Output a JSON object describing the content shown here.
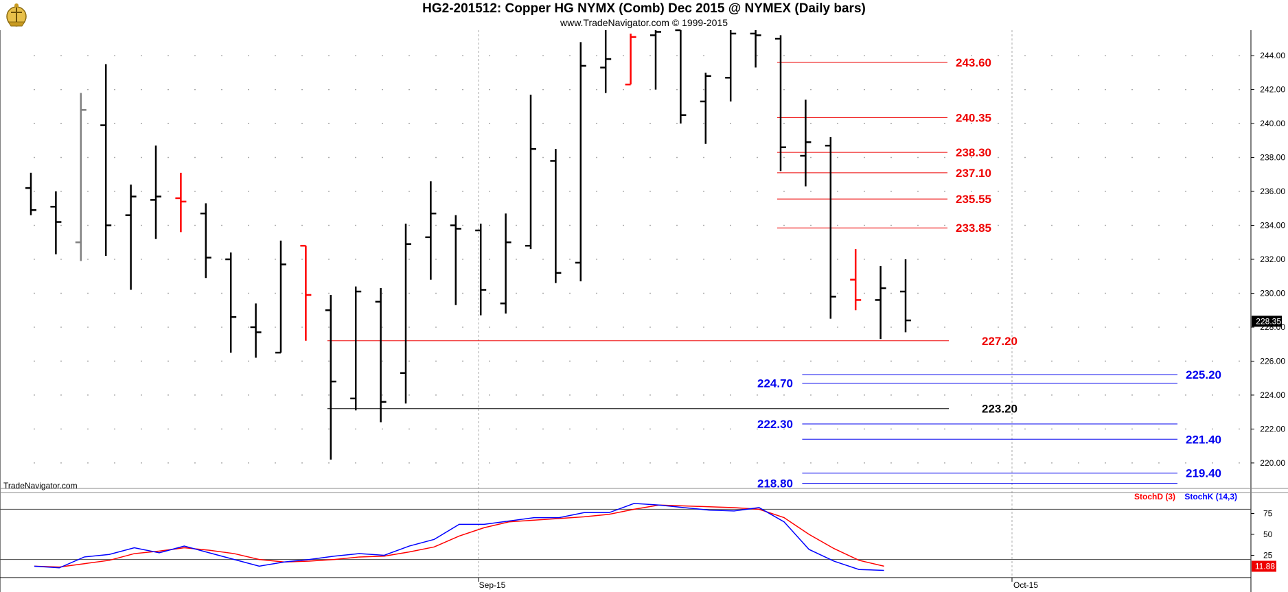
{
  "header": {
    "title": "HG2-201512:  Copper HG NYMX (Comb) Dec 2015 @ NYMEX  (Daily bars)",
    "subtitle": "www.TradeNavigator.com © 1999-2015"
  },
  "watermark": "TradeNavigator.com",
  "colors": {
    "up_bar": "#000000",
    "red_bar": "#ff0000",
    "green_bar": "#22cc22",
    "gray_bar": "#808080",
    "red_level": "#ee0000",
    "blue_level": "#0000ee",
    "black_level": "#000000",
    "stoch_d": "#ff0000",
    "stoch_k": "#0000ff"
  },
  "chart_data": [
    {
      "type": "ohlc",
      "y_axis": {
        "range": [
          218.5,
          245.5
        ],
        "ticks": [
          "220.00",
          "222.00",
          "224.00",
          "226.00",
          "228.00",
          "230.00",
          "232.00",
          "234.00",
          "236.00",
          "238.00",
          "240.00",
          "242.00",
          "244.00"
        ]
      },
      "x_axis": {
        "labels": [
          "Sep-15",
          "Oct-15"
        ]
      },
      "last_price": "228.35",
      "bars": [
        {
          "o": 236.2,
          "h": 237.1,
          "l": 234.6,
          "c": 234.9,
          "color": "black"
        },
        {
          "o": 235.1,
          "h": 236.0,
          "l": 232.3,
          "c": 234.2,
          "color": "black"
        },
        {
          "o": 233.0,
          "h": 241.8,
          "l": 231.9,
          "c": 240.8,
          "color": "gray"
        },
        {
          "o": 239.9,
          "h": 243.5,
          "l": 232.2,
          "c": 234.0,
          "color": "black"
        },
        {
          "o": 234.6,
          "h": 236.4,
          "l": 230.2,
          "c": 235.7,
          "color": "black"
        },
        {
          "o": 235.5,
          "h": 238.7,
          "l": 233.2,
          "c": 235.7,
          "color": "black"
        },
        {
          "o": 235.6,
          "h": 237.1,
          "l": 233.6,
          "c": 235.4,
          "color": "red"
        },
        {
          "o": 234.7,
          "h": 235.3,
          "l": 230.9,
          "c": 232.1,
          "color": "black"
        },
        {
          "o": 232.0,
          "h": 232.4,
          "l": 226.5,
          "c": 228.6,
          "color": "black"
        },
        {
          "o": 228.0,
          "h": 229.4,
          "l": 226.2,
          "c": 227.7,
          "color": "black"
        },
        {
          "o": 226.5,
          "h": 233.1,
          "l": 226.5,
          "c": 231.7,
          "color": "black"
        },
        {
          "o": 232.8,
          "h": 232.8,
          "l": 227.2,
          "c": 229.9,
          "color": "red"
        },
        {
          "o": 229.0,
          "h": 229.9,
          "l": 220.2,
          "c": 224.8,
          "color": "black"
        },
        {
          "o": 223.8,
          "h": 230.4,
          "l": 223.1,
          "c": 230.1,
          "color": "black"
        },
        {
          "o": 229.5,
          "h": 230.3,
          "l": 222.4,
          "c": 223.6,
          "color": "black"
        },
        {
          "o": 225.3,
          "h": 234.1,
          "l": 223.5,
          "c": 232.9,
          "color": "black"
        },
        {
          "o": 233.3,
          "h": 236.6,
          "l": 230.8,
          "c": 234.7,
          "color": "black"
        },
        {
          "o": 234.0,
          "h": 234.6,
          "l": 229.3,
          "c": 233.8,
          "color": "black"
        },
        {
          "o": 233.7,
          "h": 234.1,
          "l": 228.7,
          "c": 230.2,
          "color": "black"
        },
        {
          "o": 229.4,
          "h": 234.7,
          "l": 228.8,
          "c": 233.0,
          "color": "black"
        },
        {
          "o": 232.8,
          "h": 241.7,
          "l": 232.6,
          "c": 238.5,
          "color": "black"
        },
        {
          "o": 237.8,
          "h": 238.5,
          "l": 230.6,
          "c": 231.2,
          "color": "black"
        },
        {
          "o": 231.8,
          "h": 244.8,
          "l": 230.7,
          "c": 243.4,
          "color": "black"
        },
        {
          "o": 243.3,
          "h": 245.8,
          "l": 241.8,
          "c": 243.8,
          "color": "black"
        },
        {
          "o": 242.3,
          "h": 245.3,
          "l": 242.3,
          "c": 245.1,
          "color": "red"
        },
        {
          "o": 245.2,
          "h": 245.6,
          "l": 242.0,
          "c": 245.4,
          "color": "black"
        },
        {
          "o": 245.8,
          "h": 245.9,
          "l": 240.0,
          "c": 240.5,
          "color": "black"
        },
        {
          "o": 241.3,
          "h": 243.0,
          "l": 238.8,
          "c": 242.8,
          "color": "black"
        },
        {
          "o": 242.7,
          "h": 245.6,
          "l": 241.3,
          "c": 245.3,
          "color": "black"
        },
        {
          "o": 245.3,
          "h": 245.5,
          "l": 243.3,
          "c": 245.2,
          "color": "black"
        },
        {
          "o": 245.0,
          "h": 245.2,
          "l": 237.2,
          "c": 238.6,
          "color": "black"
        },
        {
          "o": 238.1,
          "h": 241.4,
          "l": 236.3,
          "c": 238.9,
          "color": "black"
        },
        {
          "o": 238.7,
          "h": 239.2,
          "l": 228.5,
          "c": 229.8,
          "color": "black"
        },
        {
          "o": 230.8,
          "h": 232.6,
          "l": 229.0,
          "c": 229.6,
          "color": "red"
        },
        {
          "o": 229.6,
          "h": 231.6,
          "l": 227.3,
          "c": 230.3,
          "color": "black"
        },
        {
          "o": 230.1,
          "h": 232.0,
          "l": 227.7,
          "c": 228.4,
          "color": "black"
        }
      ],
      "levels": [
        {
          "value": 243.6,
          "label": "243.60",
          "color": "red",
          "x_start_bar": 30,
          "x_end_bar": 39,
          "label_side": "right"
        },
        {
          "value": 240.35,
          "label": "240.35",
          "color": "red",
          "x_start_bar": 30,
          "x_end_bar": 39,
          "label_side": "right"
        },
        {
          "value": 238.3,
          "label": "238.30",
          "color": "red",
          "x_start_bar": 30,
          "x_end_bar": 39,
          "label_side": "right"
        },
        {
          "value": 237.1,
          "label": "237.10",
          "color": "red",
          "x_start_bar": 30,
          "x_end_bar": 39,
          "label_side": "right"
        },
        {
          "value": 235.55,
          "label": "235.55",
          "color": "red",
          "x_start_bar": 30,
          "x_end_bar": 39,
          "label_side": "right"
        },
        {
          "value": 233.85,
          "label": "233.85",
          "color": "red",
          "x_start_bar": 30,
          "x_end_bar": 39,
          "label_side": "right"
        },
        {
          "value": 227.2,
          "label": "227.20",
          "color": "red",
          "x_start_bar": 12,
          "x_end_bar": 40,
          "label_side": "right"
        },
        {
          "value": 225.2,
          "label": "225.20",
          "color": "blue",
          "x_start_bar": 31,
          "x_end_bar": 46,
          "label_side": "far-right"
        },
        {
          "value": 224.7,
          "label": "224.70",
          "color": "blue",
          "x_start_bar": 31,
          "x_end_bar": 46,
          "label_side": "left"
        },
        {
          "value": 223.2,
          "label": "223.20",
          "color": "black",
          "x_start_bar": 12,
          "x_end_bar": 40,
          "label_side": "right"
        },
        {
          "value": 222.3,
          "label": "222.30",
          "color": "blue",
          "x_start_bar": 31,
          "x_end_bar": 46,
          "label_side": "left"
        },
        {
          "value": 221.4,
          "label": "221.40",
          "color": "blue",
          "x_start_bar": 31,
          "x_end_bar": 46,
          "label_side": "far-right"
        },
        {
          "value": 219.4,
          "label": "219.40",
          "color": "blue",
          "x_start_bar": 31,
          "x_end_bar": 46,
          "label_side": "far-right"
        },
        {
          "value": 218.8,
          "label": "218.80",
          "color": "blue",
          "x_start_bar": 31,
          "x_end_bar": 46,
          "label_side": "left"
        }
      ]
    },
    {
      "type": "line",
      "legend": [
        "StochD (3)",
        "StochK (14,3)"
      ],
      "y_axis": {
        "range": [
          0,
          100
        ],
        "ticks": [
          "25",
          "50",
          "75"
        ],
        "bands": [
          20,
          80
        ]
      },
      "last_value": "11.88",
      "series": [
        {
          "name": "StochD (3)",
          "color": "red",
          "values": [
            12,
            11,
            15,
            19,
            27,
            30,
            34,
            31,
            27,
            20,
            17,
            18,
            20,
            23,
            24,
            29,
            35,
            48,
            58,
            65,
            67,
            69,
            71,
            74,
            80,
            85,
            84,
            83,
            82,
            80,
            70,
            50,
            33,
            19,
            12
          ]
        },
        {
          "name": "StochK (14,3)",
          "color": "blue",
          "values": [
            12,
            10,
            23,
            26,
            34,
            28,
            36,
            28,
            20,
            12,
            17,
            20,
            24,
            27,
            25,
            36,
            44,
            62,
            62,
            66,
            70,
            70,
            76,
            76,
            87,
            85,
            82,
            79,
            78,
            82,
            65,
            32,
            18,
            8,
            7
          ]
        }
      ]
    }
  ]
}
